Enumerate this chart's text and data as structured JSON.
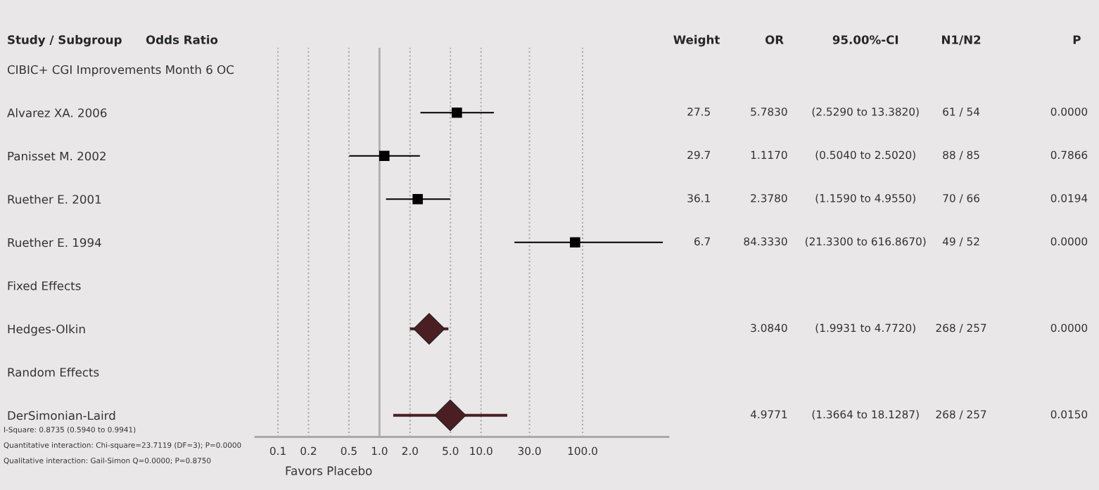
{
  "chart_data": [
    {
      "type": "scatter",
      "orientation": "horizontal",
      "title": "Odds Ratio",
      "ylabel": "Study / Subgroup",
      "xlabel": "Favors Placebo",
      "categories": [
        "CIBIC+ CGI Improvements Month 6 OC",
        "Alvarez XA. 2006",
        "Panisset M. 2002",
        "Ruether E. 2001",
        "Ruether E. 1994",
        "Fixed Effects",
        "Hedges-Olkin",
        "Random Effects",
        "DerSimonian-Laird"
      ],
      "series": [
        {
          "color": "#000000",
          "marker": "square",
          "values": [
            null,
            5.783,
            1.117,
            2.378,
            84.333,
            null,
            null,
            null,
            null
          ],
          "errors": [
            null,
            [
              2.529,
              13.382
            ],
            [
              0.504,
              2.502
            ],
            [
              1.159,
              4.955
            ],
            [
              21.33,
              616.867
            ],
            null,
            null,
            null,
            null
          ]
        },
        {
          "color": "#4a1e22",
          "marker": "diamond",
          "values": [
            null,
            null,
            null,
            null,
            null,
            null,
            3.084,
            null,
            4.9771
          ],
          "errors": [
            null,
            null,
            null,
            null,
            null,
            null,
            [
              1.9931,
              4.772
            ],
            null,
            [
              1.3664,
              18.1287
            ]
          ]
        }
      ],
      "log": "x",
      "xlim": [
        0.06,
        700
      ],
      "xticks": [
        0.1,
        0.2,
        0.5,
        {
          "value": 1,
          "label": "1.0"
        },
        {
          "value": 2,
          "label": "2.0"
        },
        {
          "value": 5,
          "label": "5.0"
        },
        {
          "value": 10,
          "label": "10.0"
        },
        {
          "value": 30,
          "label": "30.0"
        },
        {
          "value": 100,
          "label": "100.0"
        }
      ],
      "grid": "x",
      "legend": false,
      "ref_lines": [
        {
          "axis": "x",
          "value": 1,
          "color": "#b0b0b0"
        }
      ],
      "annotations": [
        "I-Square: 0.8735 (0.5940 to 0.9941)",
        "Quantitative interaction: Chi-square=23.7119 (DF=3); P=0.0000",
        "Qualitative interaction: Gail-Simon Q=0.0000; P=0.8750"
      ]
    },
    {
      "type": "other",
      "categories": [
        "Weight",
        "OR",
        "95.00%-CI",
        "N1/N2",
        "P"
      ],
      "cell_labels": [
        [
          null,
          null,
          null,
          null,
          null
        ],
        [
          "27.5",
          "5.7830",
          "(2.5290 to 13.3820)",
          "61 / 54",
          "0.0000"
        ],
        [
          "29.7",
          "1.1170",
          "(0.5040 to 2.5020)",
          "88 / 85",
          "0.7866"
        ],
        [
          "36.1",
          "2.3780",
          "(1.1590 to 4.9550)",
          "70 / 66",
          "0.0194"
        ],
        [
          "6.7",
          "84.3330",
          "(21.3300 to 616.8670)",
          "49 / 52",
          "0.0000"
        ],
        [
          null,
          null,
          null,
          null,
          null
        ],
        [
          null,
          "3.0840",
          "(1.9931 to 4.7720)",
          "268 / 257",
          "0.0000"
        ],
        [
          null,
          null,
          null,
          null,
          null
        ],
        [
          null,
          "4.9771",
          "(1.3664 to 18.1287)",
          "268 / 257",
          "0.0150"
        ]
      ]
    }
  ]
}
